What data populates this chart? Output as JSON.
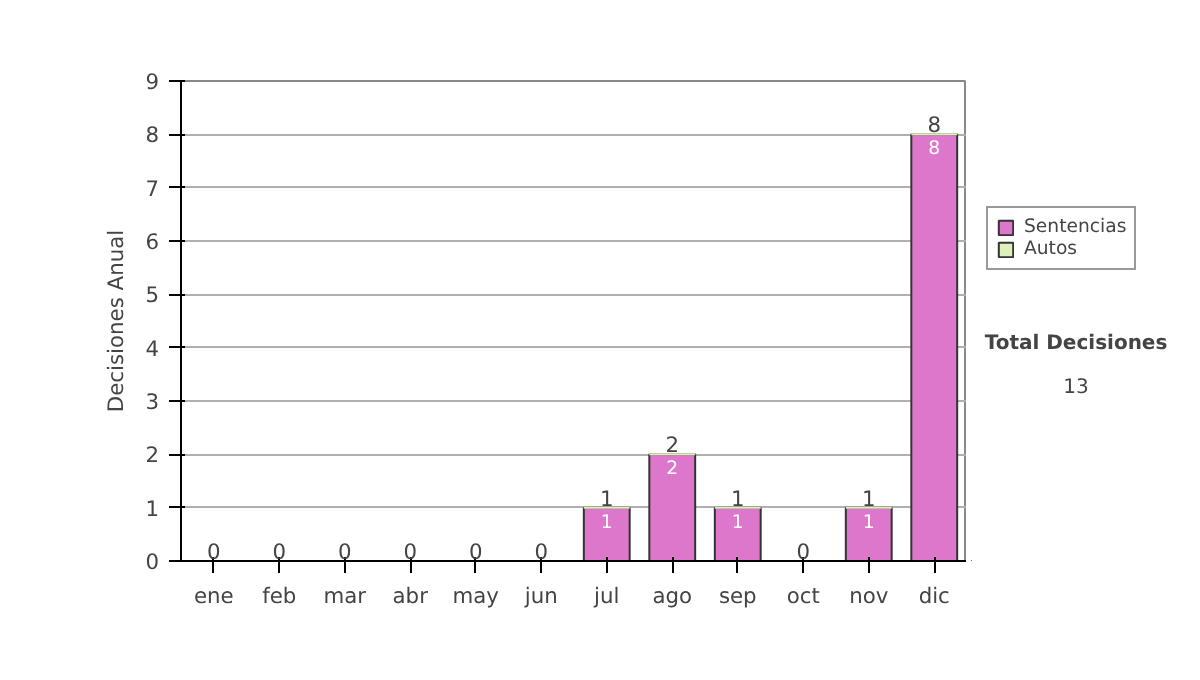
{
  "chart_data": {
    "type": "bar",
    "ylabel": "Decisiones Anual",
    "categories": [
      "ene",
      "feb",
      "mar",
      "abr",
      "may",
      "jun",
      "jul",
      "ago",
      "sep",
      "oct",
      "nov",
      "dic"
    ],
    "stacked": true,
    "series": [
      {
        "name": "Sentencias",
        "color": "#dd77cc",
        "values": [
          0,
          0,
          0,
          0,
          0,
          0,
          1,
          2,
          1,
          0,
          1,
          8
        ],
        "value_labels": [
          null,
          null,
          null,
          null,
          null,
          null,
          "1",
          "2",
          "1",
          null,
          "1",
          "8"
        ]
      },
      {
        "name": "Autos",
        "color": "#ddf0bb",
        "values": [
          0,
          0,
          0,
          0,
          0,
          0,
          0,
          0,
          0,
          0,
          0,
          0
        ]
      }
    ],
    "totals": [
      "0",
      "0",
      "0",
      "0",
      "0",
      "0",
      "1",
      "2",
      "1",
      "0",
      "1",
      "8"
    ],
    "ylim": [
      0,
      9
    ],
    "yticks": [
      0,
      1,
      2,
      3,
      4,
      5,
      6,
      7,
      8,
      9
    ],
    "grid": "y",
    "legend": "right",
    "annotations": [
      "Total Decisiones",
      "13"
    ]
  }
}
